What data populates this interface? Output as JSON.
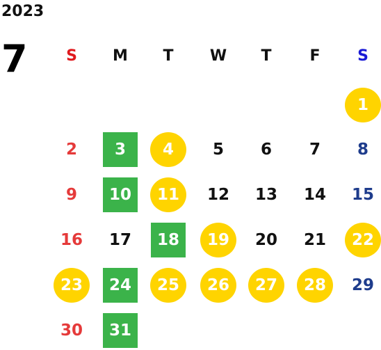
{
  "calendar": {
    "year": "2023",
    "month": "7",
    "weekdays": [
      {
        "label": "S",
        "color": "#e0191d"
      },
      {
        "label": "M",
        "color": "#111111"
      },
      {
        "label": "T",
        "color": "#111111"
      },
      {
        "label": "W",
        "color": "#111111"
      },
      {
        "label": "T",
        "color": "#111111"
      },
      {
        "label": "F",
        "color": "#111111"
      },
      {
        "label": "S",
        "color": "#1a1ad6"
      }
    ],
    "colors": {
      "sunday": "#e53a3a",
      "saturday": "#1e3c8c",
      "weekday": "#111111",
      "highlight_text": "#ffffff",
      "circle_fill": "#ffd400",
      "square_fill": "#3bb34a"
    },
    "first_weekday_index": 6,
    "days": [
      {
        "n": "1",
        "mark": "circle"
      },
      {
        "n": "2",
        "mark": "none"
      },
      {
        "n": "3",
        "mark": "square"
      },
      {
        "n": "4",
        "mark": "circle"
      },
      {
        "n": "5",
        "mark": "none"
      },
      {
        "n": "6",
        "mark": "none"
      },
      {
        "n": "7",
        "mark": "none"
      },
      {
        "n": "8",
        "mark": "none"
      },
      {
        "n": "9",
        "mark": "none"
      },
      {
        "n": "10",
        "mark": "square"
      },
      {
        "n": "11",
        "mark": "circle"
      },
      {
        "n": "12",
        "mark": "none"
      },
      {
        "n": "13",
        "mark": "none"
      },
      {
        "n": "14",
        "mark": "none"
      },
      {
        "n": "15",
        "mark": "none"
      },
      {
        "n": "16",
        "mark": "none"
      },
      {
        "n": "17",
        "mark": "none"
      },
      {
        "n": "18",
        "mark": "square"
      },
      {
        "n": "19",
        "mark": "circle"
      },
      {
        "n": "20",
        "mark": "none"
      },
      {
        "n": "21",
        "mark": "none"
      },
      {
        "n": "22",
        "mark": "circle"
      },
      {
        "n": "23",
        "mark": "circle"
      },
      {
        "n": "24",
        "mark": "square"
      },
      {
        "n": "25",
        "mark": "circle"
      },
      {
        "n": "26",
        "mark": "circle"
      },
      {
        "n": "27",
        "mark": "circle"
      },
      {
        "n": "28",
        "mark": "circle"
      },
      {
        "n": "29",
        "mark": "none"
      },
      {
        "n": "30",
        "mark": "none"
      },
      {
        "n": "31",
        "mark": "square"
      }
    ]
  }
}
